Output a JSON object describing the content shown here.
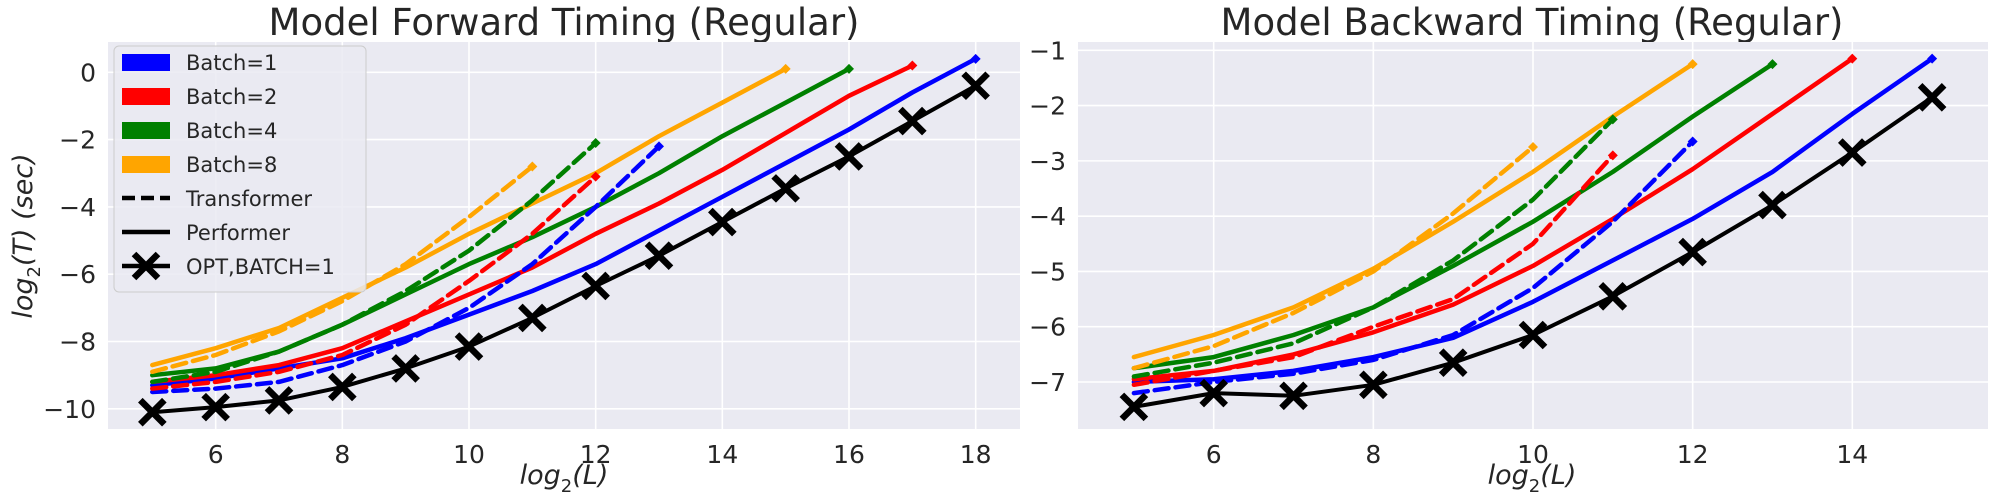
{
  "chart_data": [
    {
      "type": "line",
      "title": "Model Forward Timing (Regular)",
      "xlabel_base": "log",
      "xlabel_sub": "2",
      "xlabel_arg": "(L)",
      "ylabel_base": "log",
      "ylabel_sub": "2",
      "ylabel_arg": "(T) (sec)",
      "xlim": [
        4.3,
        18.7
      ],
      "ylim": [
        -10.6,
        0.9
      ],
      "xticks": [
        6,
        8,
        10,
        12,
        14,
        16,
        18
      ],
      "xtick_labels": [
        "6",
        "8",
        "10",
        "12",
        "14",
        "16",
        "18"
      ],
      "yticks": [
        0,
        -2,
        -4,
        -6,
        -8,
        -10
      ],
      "ytick_labels": [
        "0",
        "−2",
        "−4",
        "−6",
        "−8",
        "−10"
      ],
      "grid": true,
      "legend_position": "top-left",
      "legend": {
        "entries": [
          {
            "label": "Batch=1",
            "kind": "patch",
            "color": "#0000ff"
          },
          {
            "label": "Batch=2",
            "kind": "patch",
            "color": "#ff0000"
          },
          {
            "label": "Batch=4",
            "kind": "patch",
            "color": "#008000"
          },
          {
            "label": "Batch=8",
            "kind": "patch",
            "color": "#ffa500"
          },
          {
            "label": "Transformer",
            "kind": "dashed",
            "color": "#000000"
          },
          {
            "label": "Performer",
            "kind": "solid",
            "color": "#000000"
          },
          {
            "label": "OPT,BATCH=1",
            "kind": "cross",
            "color": "#000000"
          }
        ]
      },
      "series": [
        {
          "model": "Performer",
          "batch": 1,
          "color": "#0000ff",
          "style": "solid",
          "marker": "diamond",
          "x": [
            5,
            6,
            7,
            8,
            9,
            10,
            11,
            12,
            13,
            14,
            15,
            16,
            17,
            18
          ],
          "y": [
            -9.3,
            -9.1,
            -8.8,
            -8.5,
            -7.9,
            -7.2,
            -6.5,
            -5.7,
            -4.7,
            -3.7,
            -2.7,
            -1.7,
            -0.6,
            0.4
          ]
        },
        {
          "model": "Performer",
          "batch": 2,
          "color": "#ff0000",
          "style": "solid",
          "marker": "diamond",
          "x": [
            5,
            6,
            7,
            8,
            9,
            10,
            11,
            12,
            13,
            14,
            15,
            16,
            17
          ],
          "y": [
            -9.2,
            -9.0,
            -8.7,
            -8.2,
            -7.4,
            -6.6,
            -5.8,
            -4.8,
            -3.9,
            -2.9,
            -1.8,
            -0.7,
            0.2
          ]
        },
        {
          "model": "Performer",
          "batch": 4,
          "color": "#008000",
          "style": "solid",
          "marker": "diamond",
          "x": [
            5,
            6,
            7,
            8,
            9,
            10,
            11,
            12,
            13,
            14,
            15,
            16
          ],
          "y": [
            -9.0,
            -8.8,
            -8.3,
            -7.5,
            -6.6,
            -5.7,
            -4.9,
            -4.0,
            -3.0,
            -1.9,
            -0.9,
            0.1
          ]
        },
        {
          "model": "Performer",
          "batch": 8,
          "color": "#ffa500",
          "style": "solid",
          "marker": "diamond",
          "x": [
            5,
            6,
            7,
            8,
            9,
            10,
            11,
            12,
            13,
            14,
            15
          ],
          "y": [
            -8.7,
            -8.2,
            -7.6,
            -6.7,
            -5.8,
            -4.8,
            -3.9,
            -3.0,
            -1.9,
            -0.9,
            0.1
          ]
        },
        {
          "model": "Transformer",
          "batch": 1,
          "color": "#0000ff",
          "style": "dashed",
          "marker": "diamond",
          "x": [
            5,
            6,
            7,
            8,
            9,
            10,
            11,
            12,
            13
          ],
          "y": [
            -9.5,
            -9.4,
            -9.2,
            -8.7,
            -8.0,
            -7.0,
            -5.7,
            -4.0,
            -2.2
          ]
        },
        {
          "model": "Transformer",
          "batch": 2,
          "color": "#ff0000",
          "style": "dashed",
          "marker": "diamond",
          "x": [
            5,
            6,
            7,
            8,
            9,
            10,
            11,
            12
          ],
          "y": [
            -9.4,
            -9.2,
            -8.9,
            -8.4,
            -7.5,
            -6.2,
            -4.8,
            -3.1
          ]
        },
        {
          "model": "Transformer",
          "batch": 4,
          "color": "#008000",
          "style": "dashed",
          "marker": "diamond",
          "x": [
            5,
            6,
            7,
            8,
            9,
            10,
            11,
            12
          ],
          "y": [
            -9.2,
            -8.9,
            -8.3,
            -7.5,
            -6.5,
            -5.3,
            -3.8,
            -2.1
          ]
        },
        {
          "model": "Transformer",
          "batch": 8,
          "color": "#ffa500",
          "style": "dashed",
          "marker": "diamond",
          "x": [
            5,
            6,
            7,
            8,
            9,
            10,
            11
          ],
          "y": [
            -8.9,
            -8.4,
            -7.7,
            -6.8,
            -5.7,
            -4.3,
            -2.8
          ]
        },
        {
          "model": "OPT",
          "batch": 1,
          "color": "#000000",
          "style": "solid",
          "marker": "cross",
          "x": [
            5,
            6,
            7,
            8,
            9,
            10,
            11,
            12,
            13,
            14,
            15,
            16,
            17,
            18
          ],
          "y": [
            -10.1,
            -9.95,
            -9.75,
            -9.35,
            -8.8,
            -8.15,
            -7.3,
            -6.35,
            -5.45,
            -4.45,
            -3.45,
            -2.5,
            -1.45,
            -0.4
          ]
        }
      ]
    },
    {
      "type": "line",
      "title": "Model Backward Timing (Regular)",
      "xlabel_base": "log",
      "xlabel_sub": "2",
      "xlabel_arg": "(L)",
      "xlim": [
        4.3,
        15.7
      ],
      "ylim": [
        -7.85,
        -0.85
      ],
      "xticks": [
        6,
        8,
        10,
        12,
        14
      ],
      "xtick_labels": [
        "6",
        "8",
        "10",
        "12",
        "14"
      ],
      "yticks": [
        -1,
        -2,
        -3,
        -4,
        -5,
        -6,
        -7
      ],
      "ytick_labels": [
        "−1",
        "−2",
        "−3",
        "−4",
        "−5",
        "−6",
        "−7"
      ],
      "grid": true,
      "series": [
        {
          "model": "Performer",
          "batch": 1,
          "color": "#0000ff",
          "style": "solid",
          "marker": "diamond",
          "x": [
            5,
            6,
            7,
            8,
            9,
            10,
            11,
            12,
            13,
            14,
            15
          ],
          "y": [
            -7.0,
            -6.95,
            -6.8,
            -6.55,
            -6.2,
            -5.55,
            -4.8,
            -4.05,
            -3.2,
            -2.15,
            -1.15
          ]
        },
        {
          "model": "Performer",
          "batch": 2,
          "color": "#ff0000",
          "style": "solid",
          "marker": "diamond",
          "x": [
            5,
            6,
            7,
            8,
            9,
            10,
            11,
            12,
            13,
            14
          ],
          "y": [
            -6.95,
            -6.8,
            -6.5,
            -6.1,
            -5.6,
            -4.9,
            -4.05,
            -3.15,
            -2.15,
            -1.15
          ]
        },
        {
          "model": "Performer",
          "batch": 4,
          "color": "#008000",
          "style": "solid",
          "marker": "diamond",
          "x": [
            5,
            6,
            7,
            8,
            9,
            10,
            11,
            12,
            13
          ],
          "y": [
            -6.75,
            -6.55,
            -6.15,
            -5.65,
            -4.9,
            -4.1,
            -3.2,
            -2.2,
            -1.25
          ]
        },
        {
          "model": "Performer",
          "batch": 8,
          "color": "#ffa500",
          "style": "solid",
          "marker": "diamond",
          "x": [
            5,
            6,
            7,
            8,
            9,
            10,
            11,
            12
          ],
          "y": [
            -6.55,
            -6.15,
            -5.65,
            -4.95,
            -4.1,
            -3.2,
            -2.2,
            -1.25
          ]
        },
        {
          "model": "Transformer",
          "batch": 1,
          "color": "#0000ff",
          "style": "dashed",
          "marker": "diamond",
          "x": [
            5,
            6,
            7,
            8,
            9,
            10,
            11,
            12
          ],
          "y": [
            -7.2,
            -7.0,
            -6.85,
            -6.6,
            -6.15,
            -5.3,
            -4.1,
            -2.65
          ]
        },
        {
          "model": "Transformer",
          "batch": 2,
          "color": "#ff0000",
          "style": "dashed",
          "marker": "diamond",
          "x": [
            5,
            6,
            7,
            8,
            9,
            10,
            11
          ],
          "y": [
            -7.05,
            -6.8,
            -6.55,
            -6.0,
            -5.5,
            -4.5,
            -2.9
          ]
        },
        {
          "model": "Transformer",
          "batch": 4,
          "color": "#008000",
          "style": "dashed",
          "marker": "diamond",
          "x": [
            5,
            6,
            7,
            8,
            9,
            10,
            11
          ],
          "y": [
            -6.9,
            -6.65,
            -6.3,
            -5.65,
            -4.8,
            -3.7,
            -2.25
          ]
        },
        {
          "model": "Transformer",
          "batch": 8,
          "color": "#ffa500",
          "style": "dashed",
          "marker": "diamond",
          "x": [
            5,
            6,
            7,
            8,
            9,
            10
          ],
          "y": [
            -6.75,
            -6.35,
            -5.75,
            -5.0,
            -3.95,
            -2.75
          ]
        },
        {
          "model": "OPT",
          "batch": 1,
          "color": "#000000",
          "style": "solid",
          "marker": "cross",
          "x": [
            5,
            6,
            7,
            8,
            9,
            10,
            11,
            12,
            13,
            14,
            15
          ],
          "y": [
            -7.45,
            -7.2,
            -7.25,
            -7.05,
            -6.65,
            -6.15,
            -5.45,
            -4.65,
            -3.8,
            -2.85,
            -1.85
          ]
        }
      ]
    }
  ]
}
